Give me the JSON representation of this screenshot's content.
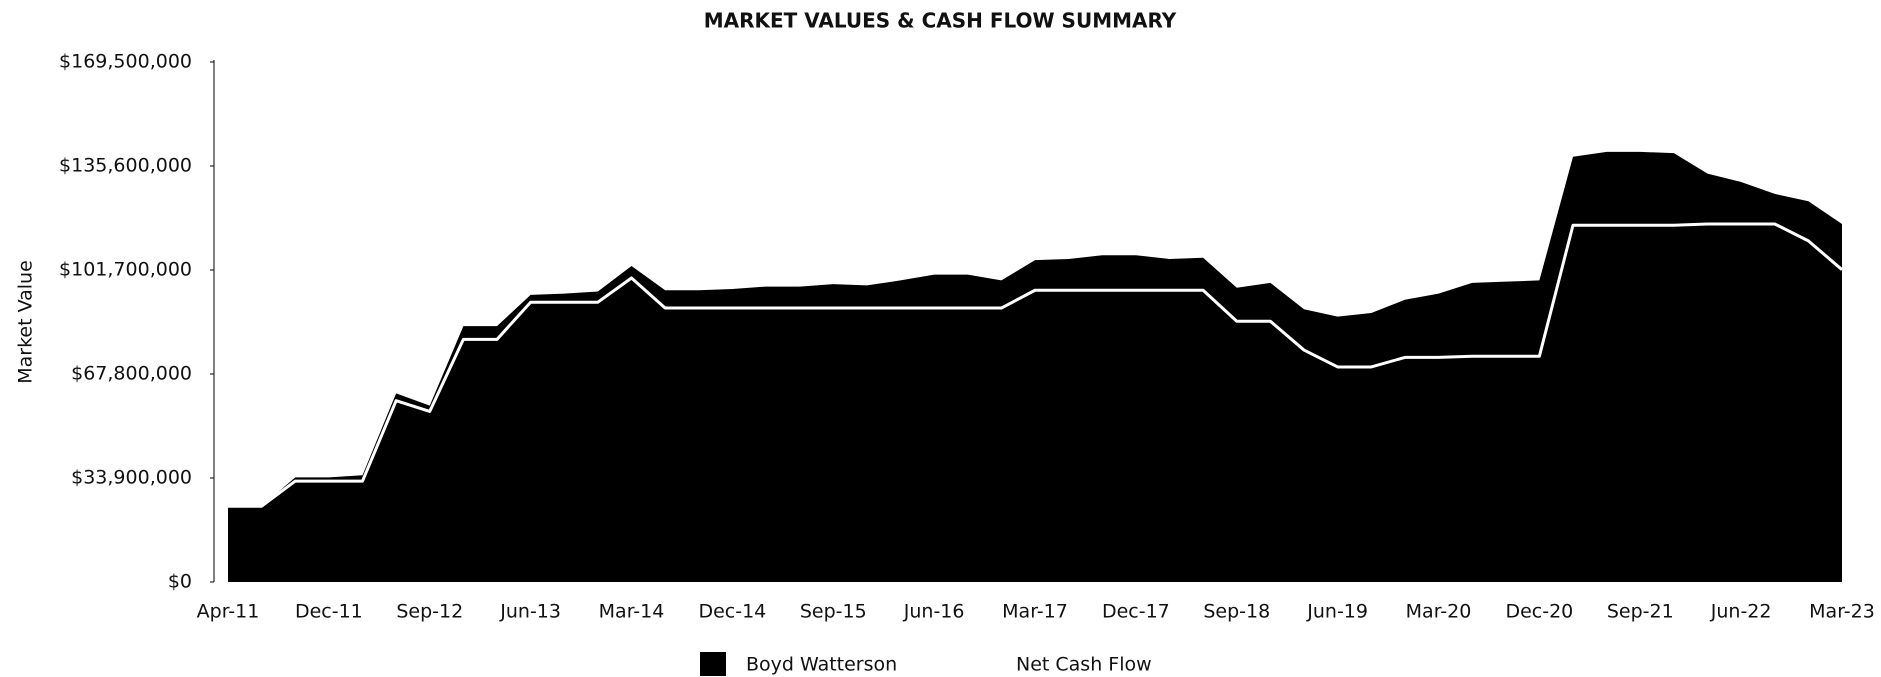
{
  "chart_data": {
    "type": "area",
    "title": "MARKET VALUES & CASH FLOW SUMMARY",
    "y_label": "Market Value",
    "categories": [
      "Apr-11",
      null,
      null,
      "Dec-11",
      null,
      null,
      "Sep-12",
      null,
      null,
      "Jun-13",
      null,
      null,
      "Mar-14",
      null,
      null,
      "Dec-14",
      null,
      null,
      "Sep-15",
      null,
      null,
      "Jun-16",
      null,
      null,
      "Mar-17",
      null,
      null,
      "Dec-17",
      null,
      null,
      "Sep-18",
      null,
      null,
      "Jun-19",
      null,
      null,
      "Mar-20",
      null,
      null,
      "Dec-20",
      null,
      null,
      "Sep-21",
      null,
      null,
      "Jun-22",
      null,
      null,
      "Mar-23"
    ],
    "series": [
      {
        "name": "Boyd Watterson",
        "color": "#000000",
        "values": [
          24700000,
          24700000,
          34100000,
          34100000,
          34800000,
          61500000,
          57500000,
          83400000,
          83400000,
          93600000,
          94000000,
          94700000,
          103000000,
          95100000,
          95100000,
          95500000,
          96300000,
          96300000,
          97100000,
          96700000,
          98300000,
          100200000,
          100200000,
          98300000,
          104900000,
          105300000,
          106500000,
          106500000,
          105300000,
          105700000,
          95900000,
          97500000,
          88900000,
          86500000,
          87700000,
          92000000,
          94000000,
          97500000,
          97900000,
          98300000,
          138600000,
          140200000,
          140200000,
          139800000,
          133100000,
          130400000,
          126500000,
          124100000,
          116700000
        ]
      },
      {
        "name": "Net Cash Flow",
        "color": "#ffffff",
        "values": [
          24700000,
          24700000,
          32900000,
          32900000,
          32900000,
          59100000,
          55600000,
          79100000,
          79100000,
          91200000,
          91200000,
          91200000,
          99100000,
          89300000,
          89300000,
          89300000,
          89300000,
          89300000,
          89300000,
          89300000,
          89300000,
          89300000,
          89300000,
          89300000,
          95100000,
          95100000,
          95100000,
          95100000,
          95100000,
          95100000,
          85000000,
          85000000,
          75600000,
          70100000,
          70100000,
          73200000,
          73200000,
          73600000,
          73600000,
          73600000,
          116300000,
          116300000,
          116300000,
          116300000,
          116700000,
          116700000,
          116700000,
          111200000,
          101800000
        ]
      }
    ],
    "ylim": [
      0,
      169500000
    ],
    "yticks": [
      {
        "value": 0,
        "label": "$0"
      },
      {
        "value": 33900000,
        "label": "$33,900,000"
      },
      {
        "value": 67800000,
        "label": "$67,800,000"
      },
      {
        "value": 101700000,
        "label": "$101,700,000"
      },
      {
        "value": 135600000,
        "label": "$135,600,000"
      },
      {
        "value": 169500000,
        "label": "$169,500,000"
      }
    ],
    "grid": false
  }
}
